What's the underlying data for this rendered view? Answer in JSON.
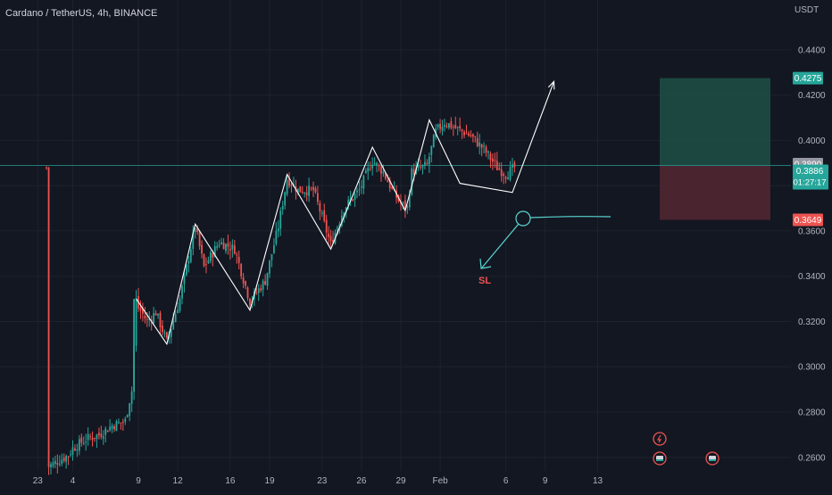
{
  "chart_data": {
    "type": "candlestick",
    "title": "Cardano / TetherUS, 4h, BINANCE",
    "currency": "USDT",
    "ylim": [
      0.254,
      0.462
    ],
    "yticks": [
      "0.4400",
      "0.4200",
      "0.4000",
      "0.3800",
      "0.3600",
      "0.3400",
      "0.3200",
      "0.3000",
      "0.2800",
      "0.2600"
    ],
    "xticks": [
      {
        "label": "23",
        "i": -6
      },
      {
        "label": "4",
        "i": 10
      },
      {
        "label": "9",
        "i": 40
      },
      {
        "label": "12",
        "i": 58
      },
      {
        "label": "16",
        "i": 82
      },
      {
        "label": "19",
        "i": 100
      },
      {
        "label": "23",
        "i": 124
      },
      {
        "label": "26",
        "i": 142
      },
      {
        "label": "29",
        "i": 160
      },
      {
        "label": "Feb",
        "i": 178
      },
      {
        "label": "6",
        "i": 208
      },
      {
        "label": "9",
        "i": 226
      },
      {
        "label": "13",
        "i": 250
      }
    ],
    "price_labels": {
      "target": "0.4275",
      "last": "0.3890",
      "current": "0.3886",
      "countdown": "01:27:17",
      "stop": "0.3649"
    },
    "colors": {
      "up": "#26a69a",
      "down": "#ef5350",
      "profit_zone": "#1e4d44",
      "loss_zone": "#4d2530",
      "annotation": "#5ad6d0",
      "pattern": "#ffffff"
    },
    "zigzag": [
      [
        39,
        0.33
      ],
      [
        53,
        0.31
      ],
      [
        66,
        0.363
      ],
      [
        91,
        0.325
      ],
      [
        108,
        0.385
      ],
      [
        128,
        0.352
      ],
      [
        147,
        0.397
      ],
      [
        162,
        0.369
      ],
      [
        173,
        0.409
      ],
      [
        187,
        0.381
      ],
      [
        211,
        0.377
      ],
      [
        230,
        0.426
      ]
    ],
    "trade": {
      "entry": 0.3889,
      "target": 0.4275,
      "stop": 0.3649
    },
    "sl_label": "SL",
    "event_icons": [
      "lightning-icon",
      "earnings-icon",
      "earnings-icon"
    ]
  }
}
